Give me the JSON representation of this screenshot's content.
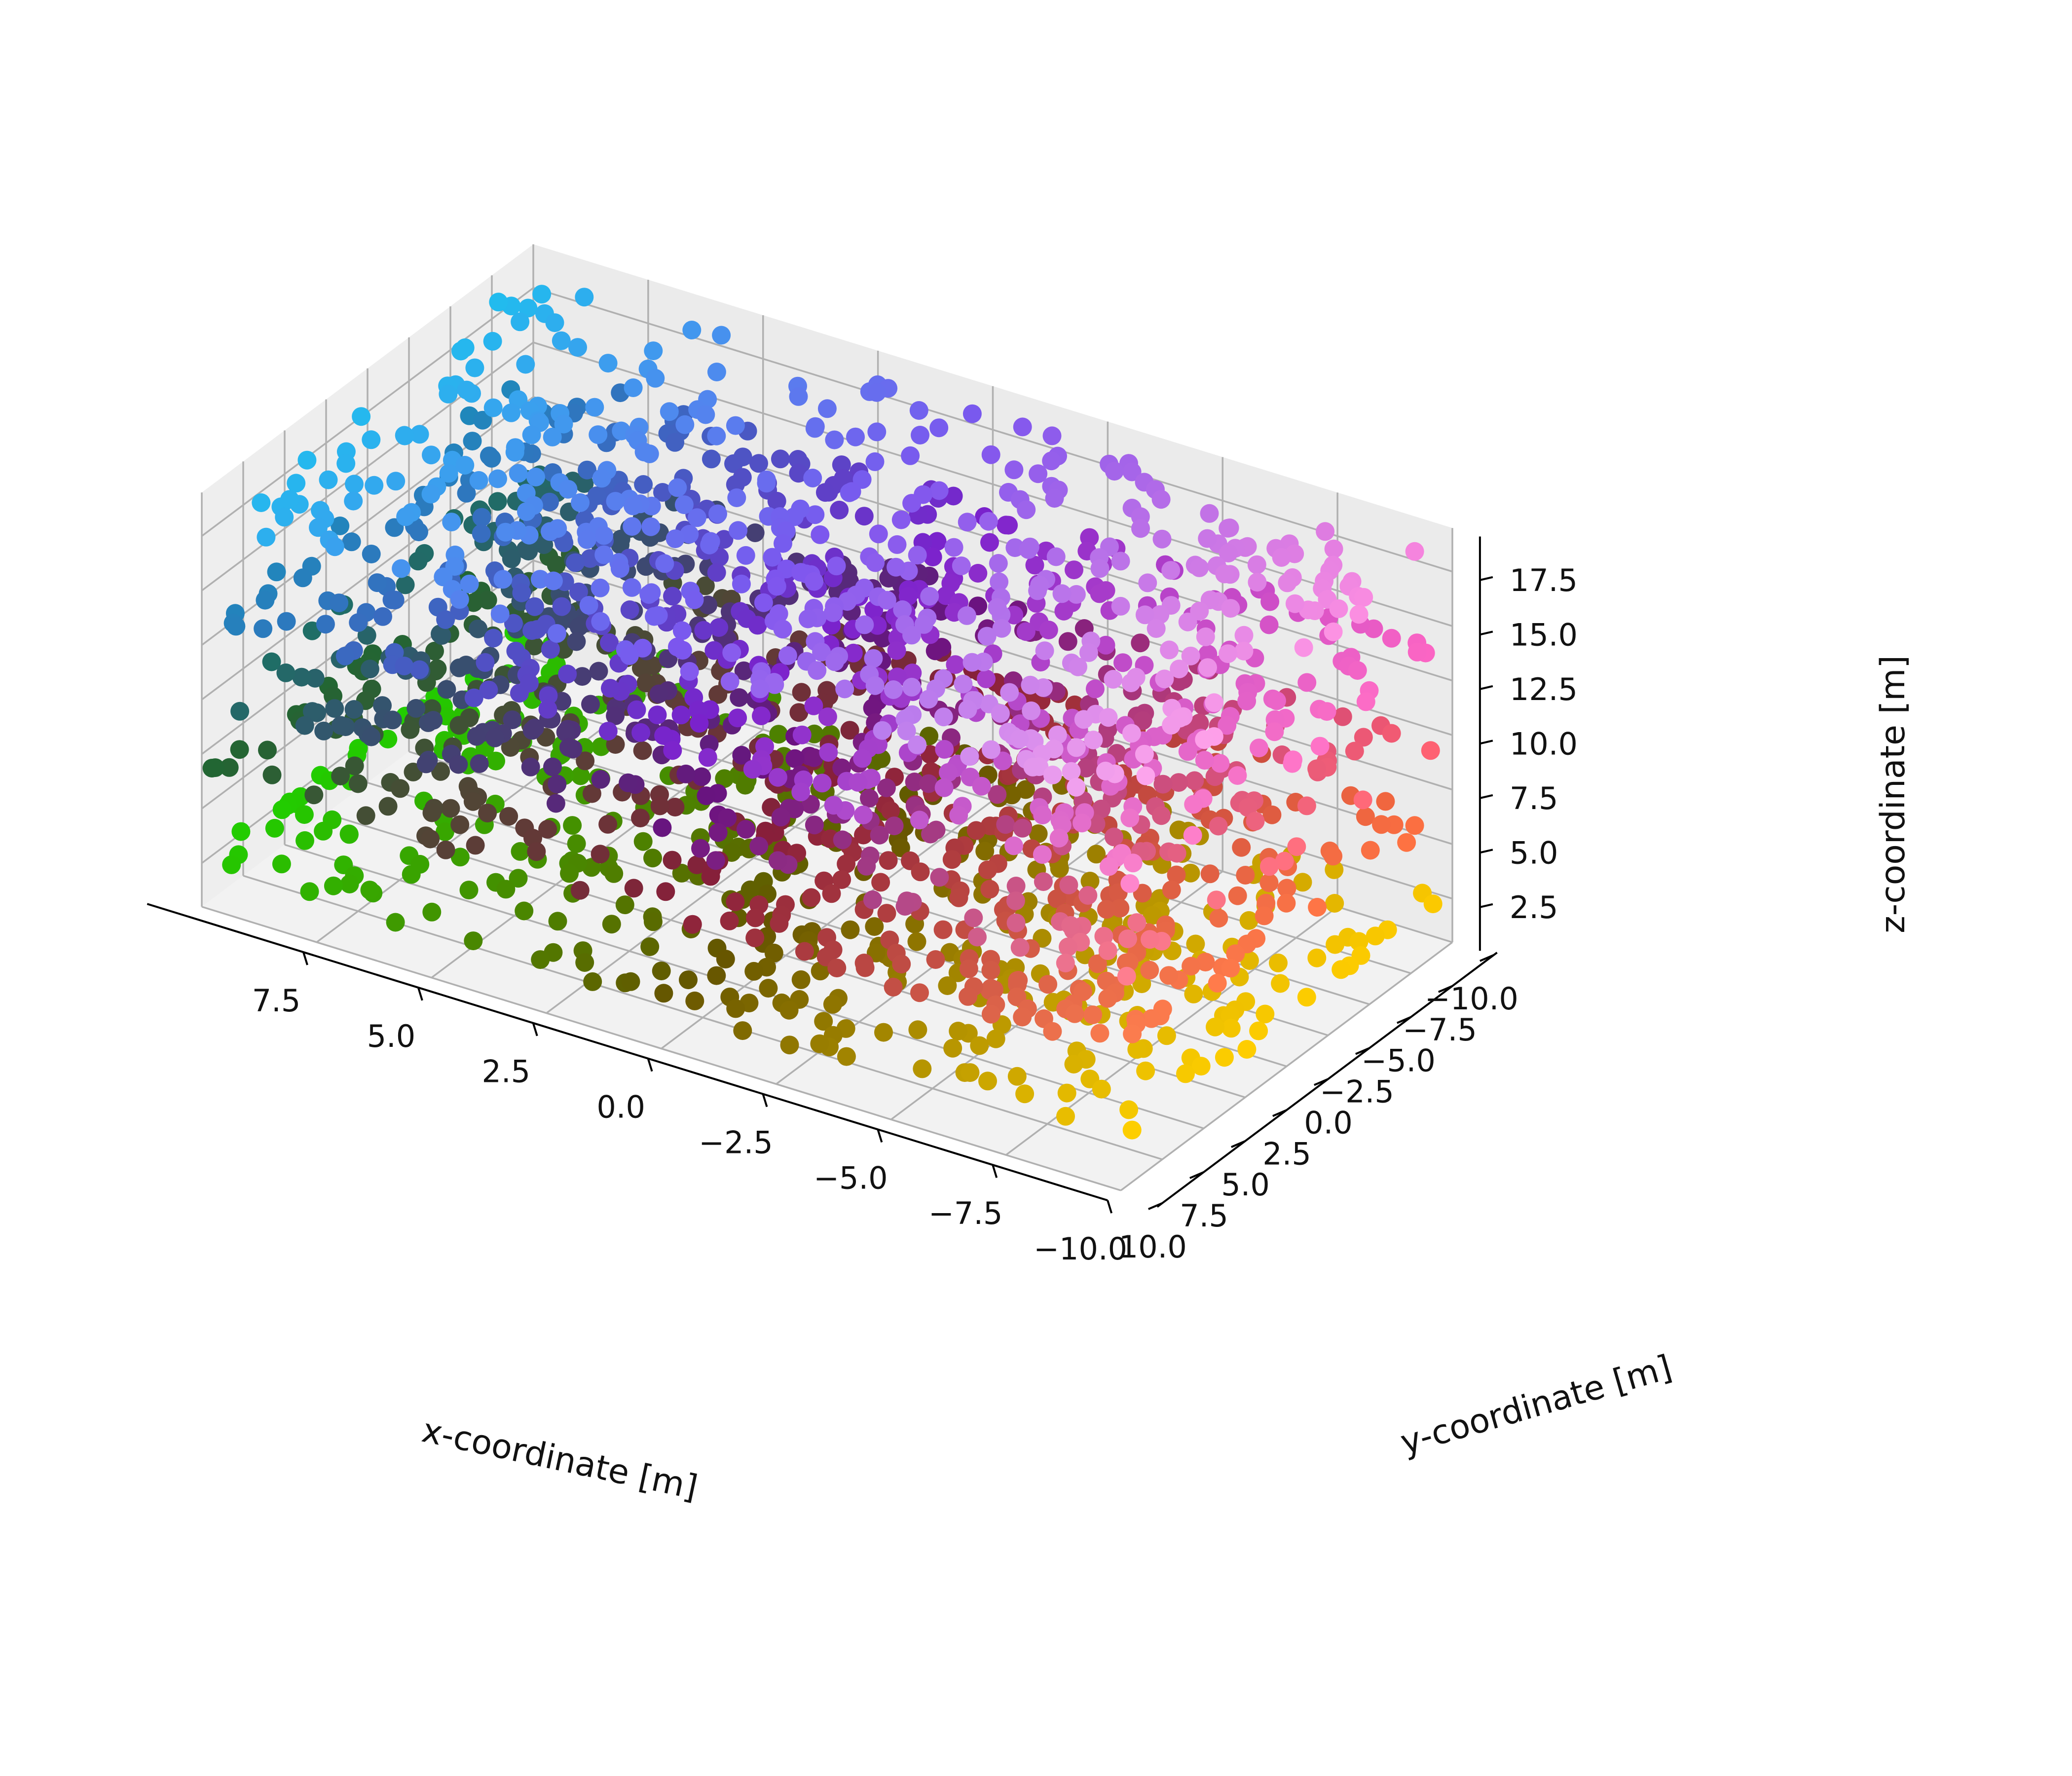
{
  "chart_data": {
    "type": "scatter",
    "projection": "3d",
    "grid": true,
    "legend": "none",
    "xlabel": "x-coordinate [m]",
    "ylabel": "y-coordinate [m]",
    "zlabel": "z-coordinate [m]",
    "xlim": [
      -10,
      10
    ],
    "ylim": [
      -10,
      10
    ],
    "zlim": [
      0.5,
      19.5
    ],
    "xticks": [
      "7.5",
      "5.0",
      "2.5",
      "0.0",
      "−2.5",
      "−5.0",
      "−7.5",
      "−10.0"
    ],
    "yticks": [
      "10.0",
      "7.5",
      "5.0",
      "2.5",
      "0.0",
      "−2.5",
      "−5.0",
      "−7.5",
      "−10.0"
    ],
    "zticks": [
      "2.5",
      "5.0",
      "7.5",
      "10.0",
      "12.5",
      "15.0",
      "17.5"
    ],
    "colors": {
      "pane": "#f2f2f2",
      "grid": "#b0b0b0",
      "axis_line": "#000000"
    },
    "series": [
      {
        "z": 2.5,
        "x_range": [
          -10,
          10
        ],
        "y_range": [
          -10,
          10
        ],
        "corner_colors": {
          "x_max": "#22cc00",
          "x_mid": "#665500",
          "x_min_y_min": "#ffcc00",
          "x_min_y_max": "#ffd000"
        }
      },
      {
        "z": 6.5,
        "x_range": [
          -10,
          10
        ],
        "y_range": [
          -10,
          10
        ],
        "corner_colors": {
          "x_max": "#226633",
          "x_mid": "#881f3a",
          "x_min_y_min": "#ff7040",
          "x_min_y_max": "#ff8050"
        }
      },
      {
        "z": 10.0,
        "x_range": [
          -10,
          10
        ],
        "y_range": [
          -10,
          10
        ],
        "corner_colors": {
          "x_max": "#1e6f66",
          "x_mid": "#6a1280",
          "x_min_y_min": "#ff6070",
          "x_min_y_max": "#ff8090"
        }
      },
      {
        "z": 14.0,
        "x_range": [
          -10,
          10
        ],
        "y_range": [
          -10,
          10
        ],
        "corner_colors": {
          "x_max": "#1f88bb",
          "x_mid": "#7a22cc",
          "x_min_y_min": "#ff66c4",
          "x_min_y_max": "#ff88cc"
        }
      },
      {
        "z": 18.0,
        "x_range": [
          -10,
          10
        ],
        "y_range": [
          -10,
          10
        ],
        "corner_colors": {
          "x_max": "#22bbee",
          "x_mid": "#7d55ee",
          "x_min_y_min": "#ff88dd",
          "x_min_y_max": "#ffaaee"
        }
      }
    ]
  }
}
